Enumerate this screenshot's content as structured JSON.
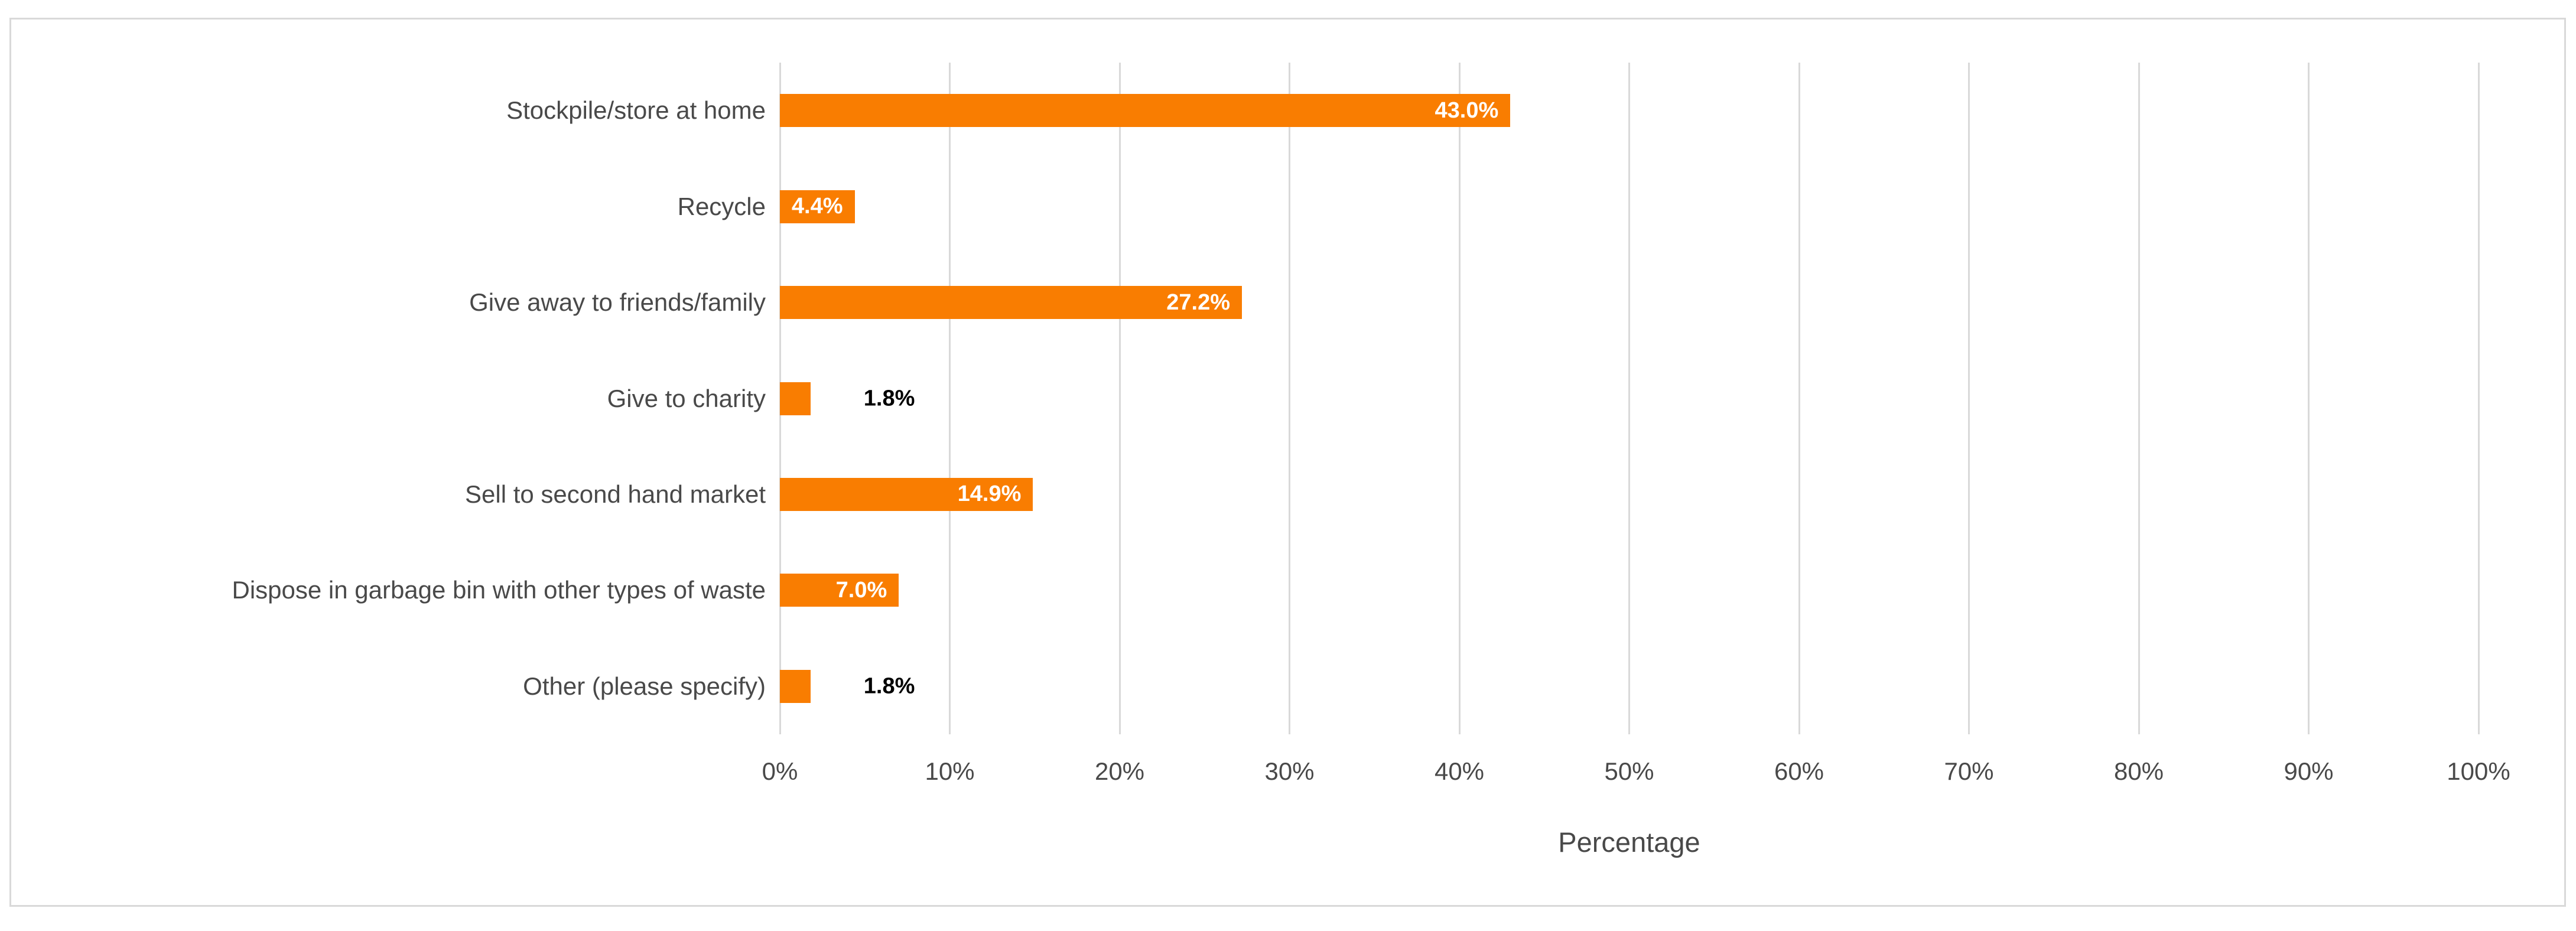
{
  "colors": {
    "bar": "#F97D01",
    "gridline": "#D9D9D9",
    "frame_border": "#D9D9D9",
    "axis_text": "#494949",
    "label_inside": "#FFFFFF",
    "label_outside": "#000000",
    "background": "#FFFFFF"
  },
  "chart_data": {
    "type": "bar",
    "orientation": "horizontal",
    "title": "",
    "xlabel": "Percentage",
    "ylabel": "",
    "xlim": [
      0,
      100
    ],
    "grid": "vertical-gridlines-on",
    "legend": "none",
    "categories": [
      "Stockpile/store at home",
      "Recycle",
      "Give away to friends/family",
      "Give to charity",
      "Sell to second hand market",
      "Dispose in garbage bin with other types of waste",
      "Other (please specify)"
    ],
    "values": [
      43.0,
      4.4,
      27.2,
      1.8,
      14.9,
      7.0,
      1.8
    ],
    "data_labels": [
      "43.0%",
      "4.4%",
      "27.2%",
      "1.8%",
      "14.9%",
      "7.0%",
      "1.8%"
    ],
    "data_label_positions": [
      "inside",
      "inside",
      "inside",
      "outside",
      "inside",
      "inside",
      "outside"
    ],
    "x_tick_labels": [
      "0%",
      "10%",
      "20%",
      "30%",
      "40%",
      "50%",
      "60%",
      "70%",
      "80%",
      "90%",
      "100%"
    ],
    "x_tick_values": [
      0,
      10,
      20,
      30,
      40,
      50,
      60,
      70,
      80,
      90,
      100
    ]
  }
}
